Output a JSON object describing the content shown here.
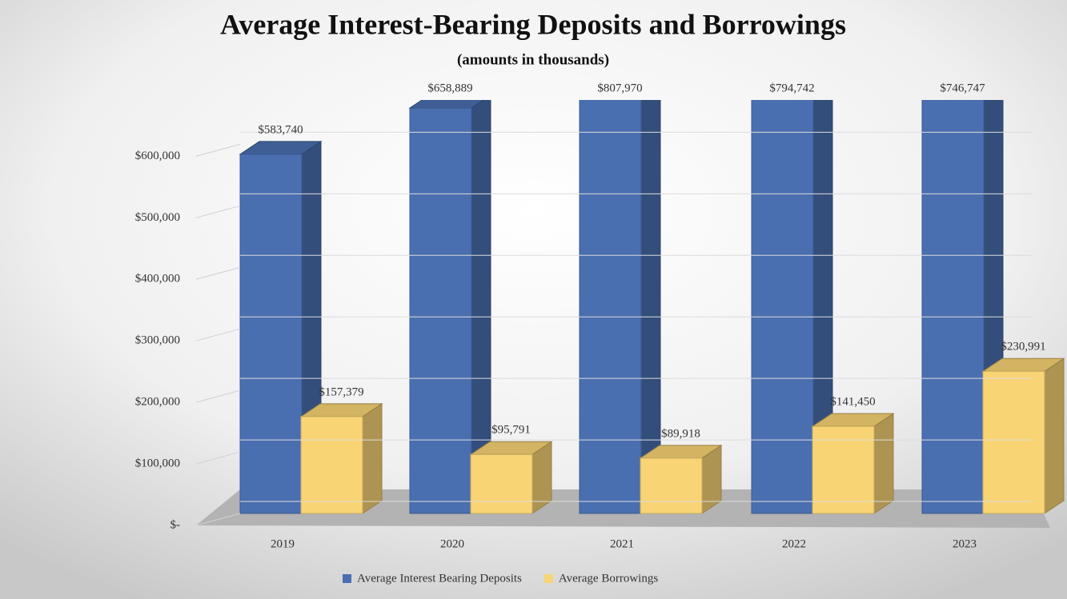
{
  "chart_data": {
    "type": "bar3d",
    "title": "Average Interest-Bearing Deposits and Borrowings",
    "subtitle": "(amounts in thousands)",
    "categories": [
      "2019",
      "2020",
      "2021",
      "2022",
      "2023"
    ],
    "series": [
      {
        "name": "Average Interest Bearing Deposits",
        "color": "#4a6fb0",
        "values": [
          583740,
          658889,
          807970,
          794742,
          746747
        ],
        "value_labels": [
          "$583,740",
          "$658,889",
          "$807,970",
          "$794,742",
          "$746,747"
        ]
      },
      {
        "name": "Average Borrowings",
        "color": "#f8d475",
        "values": [
          157379,
          95791,
          89918,
          141450,
          230991
        ],
        "value_labels": [
          "$157,379",
          "$95,791",
          "$89,918",
          "$141,450",
          "$230,991"
        ]
      }
    ],
    "ylim": [
      0,
      672000
    ],
    "yticks": [
      {
        "value": 0,
        "label": "$-"
      },
      {
        "value": 100000,
        "label": "$100,000"
      },
      {
        "value": 200000,
        "label": "$200,000"
      },
      {
        "value": 300000,
        "label": "$300,000"
      },
      {
        "value": 400000,
        "label": "$400,000"
      },
      {
        "value": 500000,
        "label": "$500,000"
      },
      {
        "value": 600000,
        "label": "$600,000"
      }
    ],
    "grid": true,
    "legend": "bottom"
  }
}
